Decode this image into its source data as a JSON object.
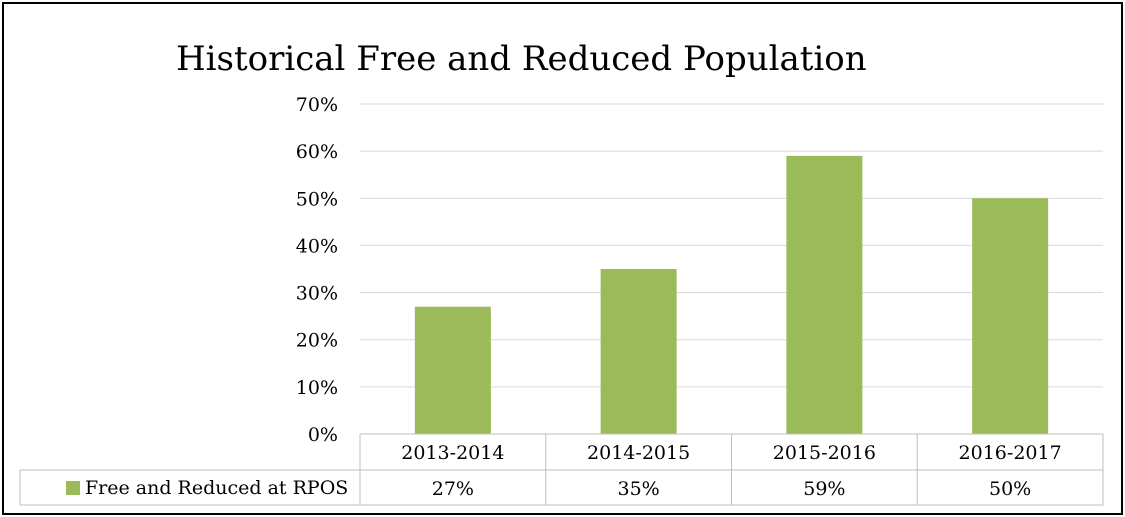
{
  "chart_data": {
    "type": "bar",
    "title": "Historical Free and Reduced Population",
    "categories": [
      "2013-2014",
      "2014-2015",
      "2015-2016",
      "2016-2017"
    ],
    "series": [
      {
        "name": "Free and Reduced at RPOS",
        "values": [
          27,
          35,
          59,
          50
        ],
        "labels": [
          "27%",
          "35%",
          "59%",
          "50%"
        ],
        "color": "#9bbb59"
      }
    ],
    "ylim": [
      0,
      70
    ],
    "yticks": [
      "0%",
      "10%",
      "20%",
      "30%",
      "40%",
      "50%",
      "60%",
      "70%"
    ],
    "grid": true,
    "legend_position": "data-table"
  }
}
